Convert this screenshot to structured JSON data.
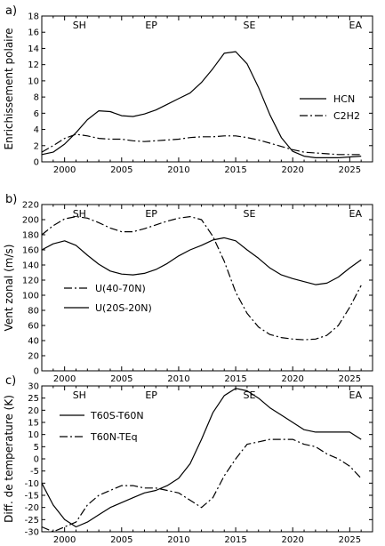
{
  "chart_data": [
    {
      "type": "line",
      "panel_label": "a)",
      "title": "",
      "xlabel": "",
      "ylabel": "Enrichissement polaire",
      "xlim": [
        1998,
        2027
      ],
      "ylim": [
        0,
        18
      ],
      "xticks": [
        2000,
        2005,
        2010,
        2015,
        2020,
        2025
      ],
      "xtick_labels": [
        "2000",
        "2005",
        "2010",
        "2015",
        "2020",
        "2025"
      ],
      "yticks": [
        0,
        2,
        4,
        6,
        8,
        10,
        12,
        14,
        16,
        18
      ],
      "ytick_labels": [
        "0",
        "2",
        "4",
        "6",
        "8",
        "10",
        "12",
        "14",
        "16",
        "18"
      ],
      "season_marks": [
        {
          "label": "SH",
          "x": 2001.3
        },
        {
          "label": "EP",
          "x": 2007.6
        },
        {
          "label": "SE",
          "x": 2016.2
        },
        {
          "label": "EA",
          "x": 2025.5
        }
      ],
      "legend_position": "right",
      "series": [
        {
          "name": "HCN",
          "style": "solid",
          "x": [
            1998,
            1999,
            2000,
            2001,
            2002,
            2003,
            2004,
            2005,
            2006,
            2007,
            2008,
            2009,
            2010,
            2011,
            2012,
            2013,
            2014,
            2015,
            2016,
            2017,
            2018,
            2019,
            2020,
            2021,
            2022,
            2023,
            2024,
            2025,
            2026
          ],
          "y": [
            0.9,
            1.2,
            2.2,
            3.6,
            5.2,
            6.3,
            6.2,
            5.7,
            5.6,
            5.9,
            6.4,
            7.1,
            7.8,
            8.5,
            9.8,
            11.5,
            13.4,
            13.6,
            12.1,
            9.2,
            5.8,
            3.0,
            1.3,
            0.7,
            0.5,
            0.5,
            0.5,
            0.6,
            0.7
          ]
        },
        {
          "name": "C2H2",
          "style": "dashdot",
          "x": [
            1998,
            1999,
            2000,
            2001,
            2002,
            2003,
            2004,
            2005,
            2006,
            2007,
            2008,
            2009,
            2010,
            2011,
            2012,
            2013,
            2014,
            2015,
            2016,
            2017,
            2018,
            2019,
            2020,
            2021,
            2022,
            2023,
            2024,
            2025,
            2026
          ],
          "y": [
            1.2,
            2.0,
            2.9,
            3.4,
            3.2,
            2.9,
            2.8,
            2.8,
            2.6,
            2.5,
            2.6,
            2.7,
            2.8,
            3.0,
            3.1,
            3.1,
            3.2,
            3.2,
            3.0,
            2.7,
            2.3,
            1.9,
            1.5,
            1.2,
            1.1,
            1.0,
            0.9,
            0.9,
            0.9
          ]
        }
      ]
    },
    {
      "type": "line",
      "panel_label": "b)",
      "title": "",
      "xlabel": "",
      "ylabel": "Vent zonal (m/s)",
      "xlim": [
        1998,
        2027
      ],
      "ylim": [
        0,
        220
      ],
      "xticks": [
        2000,
        2005,
        2010,
        2015,
        2020,
        2025
      ],
      "xtick_labels": [
        "2000",
        "2005",
        "2010",
        "2015",
        "2020",
        "2025"
      ],
      "yticks": [
        0,
        20,
        40,
        60,
        80,
        100,
        120,
        140,
        160,
        180,
        200,
        220
      ],
      "ytick_labels": [
        "0",
        "20",
        "40",
        "60",
        "80",
        "100",
        "120",
        "140",
        "160",
        "180",
        "200",
        "220"
      ],
      "season_marks": [
        {
          "label": "SH",
          "x": 2001.3
        },
        {
          "label": "EP",
          "x": 2007.6
        },
        {
          "label": "SE",
          "x": 2016.2
        },
        {
          "label": "EA",
          "x": 2025.5
        }
      ],
      "legend_position": "lower-left",
      "series": [
        {
          "name": "U(40-70N)",
          "style": "dashdot",
          "x": [
            1998,
            1999,
            2000,
            2001,
            2002,
            2003,
            2004,
            2005,
            2006,
            2007,
            2008,
            2009,
            2010,
            2011,
            2012,
            2013,
            2014,
            2015,
            2016,
            2017,
            2018,
            2019,
            2020,
            2021,
            2022,
            2023,
            2024,
            2025,
            2026
          ],
          "y": [
            180,
            192,
            201,
            204,
            202,
            196,
            189,
            184,
            184,
            188,
            193,
            198,
            202,
            204,
            200,
            178,
            145,
            104,
            76,
            58,
            48,
            44,
            42,
            41,
            42,
            47,
            60,
            84,
            113
          ]
        },
        {
          "name": "U(20S-20N)",
          "style": "solid",
          "x": [
            1998,
            1999,
            2000,
            2001,
            2002,
            2003,
            2004,
            2005,
            2006,
            2007,
            2008,
            2009,
            2010,
            2011,
            2012,
            2013,
            2014,
            2015,
            2016,
            2017,
            2018,
            2019,
            2020,
            2021,
            2022,
            2023,
            2024,
            2025,
            2026
          ],
          "y": [
            160,
            168,
            172,
            166,
            153,
            141,
            132,
            128,
            127,
            129,
            134,
            142,
            152,
            160,
            166,
            173,
            176,
            172,
            160,
            149,
            136,
            127,
            122,
            118,
            114,
            116,
            124,
            136,
            147
          ]
        }
      ]
    },
    {
      "type": "line",
      "panel_label": "c)",
      "title": "",
      "xlabel": "",
      "ylabel": "Diff. de temperature (K)",
      "xlim": [
        1998,
        2027
      ],
      "ylim": [
        -30,
        30
      ],
      "xticks": [
        2000,
        2005,
        2010,
        2015,
        2020,
        2025
      ],
      "xtick_labels": [
        "2000",
        "2005",
        "2010",
        "2015",
        "2020",
        "2025"
      ],
      "yticks": [
        -30,
        -25,
        -20,
        -15,
        -10,
        -5,
        0,
        5,
        10,
        15,
        20,
        25,
        30
      ],
      "ytick_labels": [
        "-30",
        "-25",
        "-20",
        "-15",
        "-10",
        "-5",
        "0",
        "5",
        "10",
        "15",
        "20",
        "25",
        "30"
      ],
      "season_marks": [
        {
          "label": "SH",
          "x": 2001.3
        },
        {
          "label": "EP",
          "x": 2007.6
        },
        {
          "label": "SE",
          "x": 2016.2
        },
        {
          "label": "EA",
          "x": 2025.5
        }
      ],
      "legend_position": "upper-left",
      "series": [
        {
          "name": "T60S-T60N",
          "style": "solid",
          "x": [
            1998,
            1999,
            2000,
            2001,
            2002,
            2003,
            2004,
            2005,
            2006,
            2007,
            2008,
            2009,
            2010,
            2011,
            2012,
            2013,
            2014,
            2015,
            2016,
            2017,
            2018,
            2019,
            2020,
            2021,
            2022,
            2023,
            2024,
            2025,
            2026
          ],
          "y": [
            -10,
            -19,
            -25,
            -28,
            -26,
            -23,
            -20,
            -18,
            -16,
            -14,
            -13,
            -11,
            -8,
            -2,
            8,
            19,
            26,
            29,
            28,
            25,
            21,
            18,
            15,
            12,
            11,
            11,
            11,
            11,
            8
          ]
        },
        {
          "name": "T60N-TEq",
          "style": "dashdot",
          "x": [
            1998,
            1999,
            2000,
            2001,
            2002,
            2003,
            2004,
            2005,
            2006,
            2007,
            2008,
            2009,
            2010,
            2011,
            2012,
            2013,
            2014,
            2015,
            2016,
            2017,
            2018,
            2019,
            2020,
            2021,
            2022,
            2023,
            2024,
            2025,
            2026
          ],
          "y": [
            -28,
            -30,
            -28,
            -26,
            -19,
            -15,
            -13,
            -11,
            -11,
            -12,
            -12,
            -13,
            -14,
            -17,
            -20,
            -16,
            -7,
            0,
            6,
            7,
            8,
            8,
            8,
            6,
            5,
            2,
            0,
            -3,
            -8
          ]
        }
      ]
    }
  ]
}
